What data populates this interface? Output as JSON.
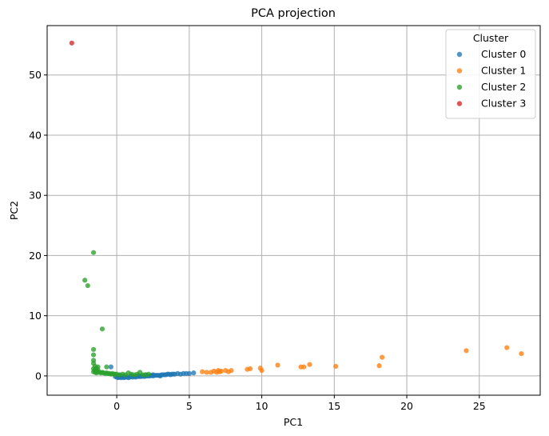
{
  "chart_data": {
    "type": "scatter",
    "title": "PCA projection",
    "xlabel": "PC1",
    "ylabel": "PC2",
    "xlim": [
      -4.8,
      29.2
    ],
    "ylim": [
      -3.2,
      58.2
    ],
    "xticks": [
      0,
      5,
      10,
      15,
      20,
      25
    ],
    "yticks": [
      0,
      10,
      20,
      30,
      40,
      50
    ],
    "grid": true,
    "legend": {
      "title": "Cluster",
      "position": "top-right"
    },
    "series": [
      {
        "name": "Cluster 0",
        "color": "#1f77b4",
        "points": [
          [
            -0.4,
            1.5
          ],
          [
            -0.1,
            -0.1
          ],
          [
            0.0,
            -0.2
          ],
          [
            0.1,
            -0.3
          ],
          [
            0.2,
            -0.2
          ],
          [
            0.3,
            -0.3
          ],
          [
            0.4,
            -0.2
          ],
          [
            0.5,
            -0.3
          ],
          [
            0.6,
            -0.2
          ],
          [
            0.7,
            -0.2
          ],
          [
            0.8,
            -0.3
          ],
          [
            0.9,
            -0.2
          ],
          [
            1.0,
            -0.1
          ],
          [
            1.1,
            -0.2
          ],
          [
            1.2,
            -0.1
          ],
          [
            1.3,
            -0.2
          ],
          [
            1.4,
            -0.1
          ],
          [
            1.5,
            -0.1
          ],
          [
            1.6,
            -0.1
          ],
          [
            1.7,
            -0.1
          ],
          [
            1.8,
            0.0
          ],
          [
            1.9,
            -0.1
          ],
          [
            2.0,
            0.0
          ],
          [
            2.1,
            0.0
          ],
          [
            2.2,
            0.0
          ],
          [
            2.3,
            0.0
          ],
          [
            2.4,
            0.1
          ],
          [
            2.5,
            0.0
          ],
          [
            2.6,
            0.1
          ],
          [
            2.7,
            0.1
          ],
          [
            2.8,
            0.1
          ],
          [
            2.9,
            0.1
          ],
          [
            3.0,
            0.1
          ],
          [
            3.1,
            0.2
          ],
          [
            3.2,
            0.2
          ],
          [
            3.3,
            0.2
          ],
          [
            3.4,
            0.2
          ],
          [
            3.5,
            0.3
          ],
          [
            3.6,
            0.3
          ],
          [
            3.7,
            0.2
          ],
          [
            3.8,
            0.3
          ],
          [
            3.9,
            0.3
          ],
          [
            4.0,
            0.3
          ],
          [
            4.2,
            0.4
          ],
          [
            4.4,
            0.3
          ],
          [
            4.6,
            0.4
          ],
          [
            4.8,
            0.4
          ],
          [
            5.0,
            0.4
          ],
          [
            5.3,
            0.5
          ],
          [
            1.0,
            0.1
          ],
          [
            1.5,
            0.1
          ],
          [
            2.0,
            0.2
          ],
          [
            2.5,
            0.2
          ],
          [
            3.0,
            0.0
          ],
          [
            0.5,
            0.0
          ],
          [
            0.2,
            0.1
          ]
        ]
      },
      {
        "name": "Cluster 1",
        "color": "#ff7f0e",
        "points": [
          [
            5.9,
            0.7
          ],
          [
            6.2,
            0.6
          ],
          [
            6.5,
            0.6
          ],
          [
            6.7,
            0.8
          ],
          [
            6.9,
            0.6
          ],
          [
            7.0,
            0.9
          ],
          [
            7.1,
            0.7
          ],
          [
            7.2,
            0.8
          ],
          [
            7.5,
            0.9
          ],
          [
            7.7,
            0.7
          ],
          [
            7.9,
            0.9
          ],
          [
            9.0,
            1.1
          ],
          [
            9.2,
            1.2
          ],
          [
            9.9,
            1.3
          ],
          [
            10.0,
            0.9
          ],
          [
            11.1,
            1.8
          ],
          [
            12.7,
            1.5
          ],
          [
            12.9,
            1.5
          ],
          [
            13.3,
            1.9
          ],
          [
            15.1,
            1.6
          ],
          [
            18.1,
            1.7
          ],
          [
            18.3,
            3.1
          ],
          [
            24.1,
            4.2
          ],
          [
            26.9,
            4.7
          ],
          [
            27.9,
            3.7
          ]
        ]
      },
      {
        "name": "Cluster 2",
        "color": "#2ca02c",
        "points": [
          [
            -2.2,
            15.9
          ],
          [
            -2.0,
            15.0
          ],
          [
            -1.6,
            20.5
          ],
          [
            -1.0,
            7.8
          ],
          [
            -1.6,
            4.4
          ],
          [
            -1.6,
            3.5
          ],
          [
            -1.6,
            2.6
          ],
          [
            -1.6,
            2.1
          ],
          [
            -1.5,
            1.6
          ],
          [
            -1.3,
            1.5
          ],
          [
            -1.6,
            1.2
          ],
          [
            -1.5,
            1.0
          ],
          [
            -1.4,
            0.9
          ],
          [
            -1.6,
            0.7
          ],
          [
            -1.5,
            0.6
          ],
          [
            -1.4,
            0.5
          ],
          [
            -1.3,
            0.7
          ],
          [
            -1.2,
            0.6
          ],
          [
            -1.1,
            0.5
          ],
          [
            -1.0,
            0.6
          ],
          [
            -0.9,
            0.5
          ],
          [
            -0.8,
            0.4
          ],
          [
            -0.7,
            0.5
          ],
          [
            -0.6,
            0.4
          ],
          [
            -0.5,
            0.4
          ],
          [
            -0.4,
            0.3
          ],
          [
            -0.3,
            0.4
          ],
          [
            -0.2,
            0.3
          ],
          [
            -0.1,
            0.3
          ],
          [
            0.0,
            0.3
          ],
          [
            0.2,
            0.2
          ],
          [
            0.4,
            0.3
          ],
          [
            0.6,
            0.2
          ],
          [
            0.8,
            0.5
          ],
          [
            1.0,
            0.3
          ],
          [
            1.2,
            0.2
          ],
          [
            1.4,
            0.3
          ],
          [
            1.6,
            0.6
          ],
          [
            1.8,
            0.2
          ],
          [
            2.0,
            0.2
          ],
          [
            2.2,
            0.3
          ],
          [
            -0.7,
            1.5
          ],
          [
            -1.4,
            1.3
          ],
          [
            -1.3,
            1.0
          ]
        ]
      },
      {
        "name": "Cluster 3",
        "color": "#d62728",
        "points": [
          [
            -3.1,
            55.3
          ]
        ]
      }
    ]
  }
}
